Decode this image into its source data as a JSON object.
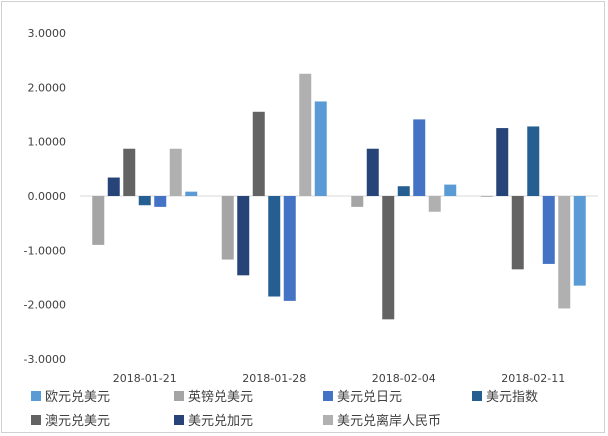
{
  "chart_data": {
    "type": "bar",
    "categories": [
      "2018-01-21",
      "2018-01-28",
      "2018-02-04",
      "2018-02-11"
    ],
    "ylim": [
      -3,
      3
    ],
    "yticks": [
      "3.0000",
      "2.0000",
      "1.0000",
      "0.0000",
      "-1.0000",
      "-2.0000",
      "-3.0000"
    ],
    "ytick_values": [
      3,
      2,
      1,
      0,
      -1,
      -2,
      -3
    ],
    "grid": false,
    "legend_position": "bottom",
    "draw_order": [
      "英镑兑美元",
      "美元兑加元",
      "澳元兑美元",
      "美元指数",
      "美元兑日元",
      "美元兑离岸人民币",
      "欧元兑美元"
    ],
    "series": [
      {
        "name": "欧元兑美元",
        "color": "#5b9bd5",
        "values": [
          0.08,
          1.74,
          0.21,
          -1.65
        ]
      },
      {
        "name": "英镑兑美元",
        "color": "#a5a5a5",
        "values": [
          -0.9,
          -1.17,
          -0.2,
          -0.01
        ]
      },
      {
        "name": "美元兑日元",
        "color": "#4472c4",
        "values": [
          -0.2,
          -1.93,
          1.41,
          -1.25
        ]
      },
      {
        "name": "美元指数",
        "color": "#255e91",
        "values": [
          -0.17,
          -1.85,
          0.18,
          1.28
        ]
      },
      {
        "name": "澳元兑美元",
        "color": "#636363",
        "values": [
          0.87,
          1.55,
          -2.27,
          -1.35
        ]
      },
      {
        "name": "美元兑加元",
        "color": "#264478",
        "values": [
          0.34,
          -1.46,
          0.87,
          1.25
        ]
      },
      {
        "name": "美元兑离岸人民币",
        "color": "#b0b0b0",
        "values": [
          0.87,
          2.25,
          -0.29,
          -2.07
        ]
      }
    ],
    "legend_order": [
      "欧元兑美元",
      "英镑兑美元",
      "美元兑日元",
      "美元指数",
      "澳元兑美元",
      "美元兑加元",
      "美元兑离岸人民币"
    ]
  }
}
